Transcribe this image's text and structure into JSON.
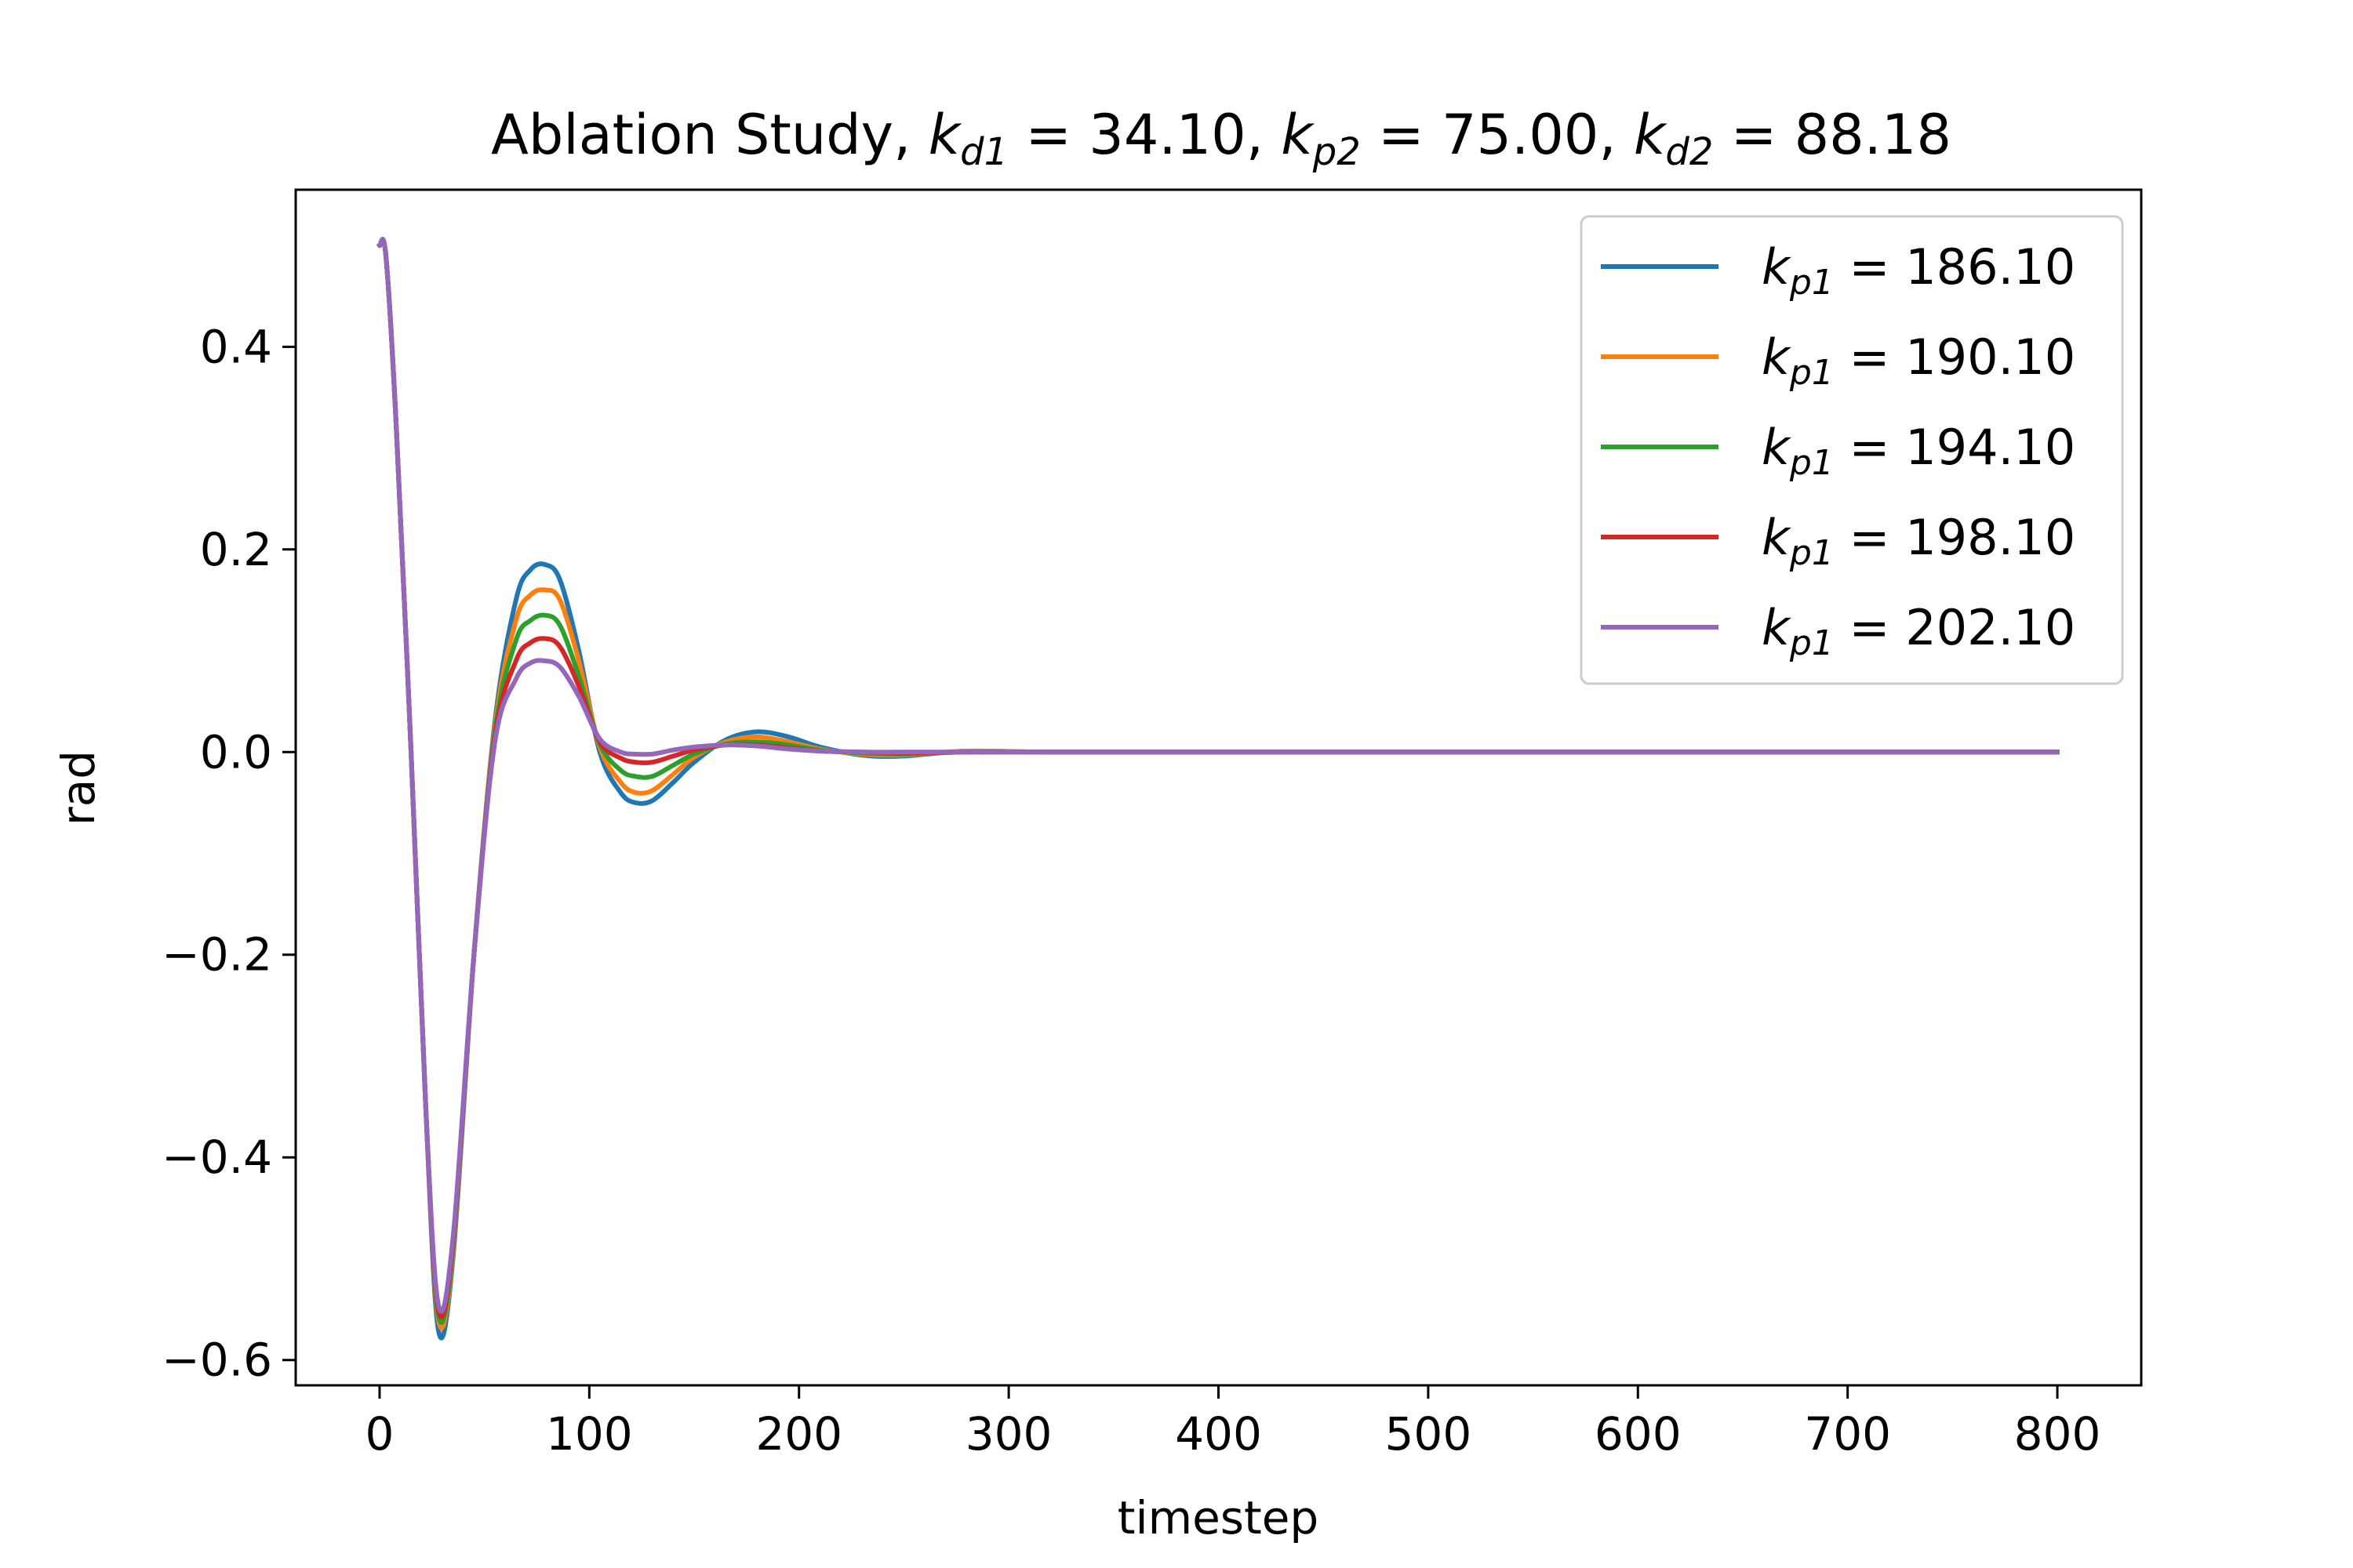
{
  "chart_data": {
    "type": "line",
    "title": {
      "prefix": "Ablation Study, ",
      "terms": [
        {
          "symbol": "k",
          "sub": "d1",
          "value": "34.10"
        },
        {
          "symbol": "k",
          "sub": "p2",
          "value": "75.00"
        },
        {
          "symbol": "k",
          "sub": "d2",
          "value": "88.18"
        }
      ]
    },
    "xlabel": "timestep",
    "ylabel": "rad",
    "xlim": [
      -40,
      840
    ],
    "ylim": [
      -0.625,
      0.555
    ],
    "xticks": [
      0,
      100,
      200,
      300,
      400,
      500,
      600,
      700,
      800
    ],
    "xtick_labels": [
      "0",
      "100",
      "200",
      "300",
      "400",
      "500",
      "600",
      "700",
      "800"
    ],
    "yticks": [
      -0.6,
      -0.4,
      -0.2,
      0.0,
      0.2,
      0.4
    ],
    "ytick_labels": [
      "−0.6",
      "−0.4",
      "−0.2",
      "0.0",
      "0.2",
      "0.4"
    ],
    "grid": false,
    "legend_position": "top-right",
    "x": [
      0,
      3,
      8,
      15,
      22,
      28,
      35,
      45,
      55,
      65,
      72,
      79,
      86,
      95,
      105,
      115,
      122,
      130,
      140,
      150,
      165,
      180,
      195,
      210,
      230,
      250,
      280,
      320,
      400,
      500,
      600,
      700,
      800
    ],
    "series": [
      {
        "name": "186.10",
        "sub": "p1",
        "color": "#1f77b4",
        "values": [
          0.5,
          0.49,
          0.32,
          0.0,
          -0.35,
          -0.57,
          -0.5,
          -0.2,
          0.03,
          0.15,
          0.18,
          0.185,
          0.17,
          0.1,
          0.0,
          -0.04,
          -0.05,
          -0.048,
          -0.03,
          -0.01,
          0.012,
          0.02,
          0.015,
          0.005,
          -0.003,
          -0.004,
          0.001,
          0.0,
          0.0,
          0.0,
          0.0,
          0.0,
          0.0
        ]
      },
      {
        "name": "190.10",
        "sub": "p1",
        "color": "#ff7f0e",
        "values": [
          0.5,
          0.49,
          0.32,
          0.0,
          -0.35,
          -0.56,
          -0.495,
          -0.2,
          0.025,
          0.13,
          0.155,
          0.16,
          0.15,
          0.09,
          0.005,
          -0.03,
          -0.04,
          -0.038,
          -0.022,
          -0.005,
          0.01,
          0.015,
          0.01,
          0.003,
          -0.002,
          -0.003,
          0.001,
          0.0,
          0.0,
          0.0,
          0.0,
          0.0,
          0.0
        ]
      },
      {
        "name": "194.10",
        "sub": "p1",
        "color": "#2ca02c",
        "values": [
          0.5,
          0.49,
          0.32,
          0.0,
          -0.35,
          -0.555,
          -0.49,
          -0.2,
          0.02,
          0.11,
          0.13,
          0.135,
          0.125,
          0.075,
          0.008,
          -0.018,
          -0.024,
          -0.024,
          -0.013,
          -0.002,
          0.008,
          0.01,
          0.007,
          0.002,
          -0.001,
          -0.002,
          0.0,
          0.0,
          0.0,
          0.0,
          0.0,
          0.0,
          0.0
        ]
      },
      {
        "name": "198.10",
        "sub": "p1",
        "color": "#d62728",
        "values": [
          0.5,
          0.49,
          0.32,
          0.0,
          -0.35,
          -0.55,
          -0.485,
          -0.2,
          0.015,
          0.09,
          0.108,
          0.112,
          0.104,
          0.065,
          0.01,
          -0.006,
          -0.01,
          -0.01,
          -0.004,
          0.002,
          0.007,
          0.007,
          0.004,
          0.001,
          0.0,
          -0.001,
          0.0,
          0.0,
          0.0,
          0.0,
          0.0,
          0.0,
          0.0
        ]
      },
      {
        "name": "202.10",
        "sub": "p1",
        "color": "#9467bd",
        "values": [
          0.5,
          0.49,
          0.32,
          0.0,
          -0.35,
          -0.545,
          -0.48,
          -0.2,
          0.01,
          0.072,
          0.088,
          0.09,
          0.084,
          0.055,
          0.013,
          0.0,
          -0.002,
          -0.002,
          0.002,
          0.005,
          0.007,
          0.006,
          0.003,
          0.001,
          0.0,
          0.0,
          0.0,
          0.0,
          0.0,
          0.0,
          0.0,
          0.0,
          0.0
        ]
      }
    ]
  }
}
